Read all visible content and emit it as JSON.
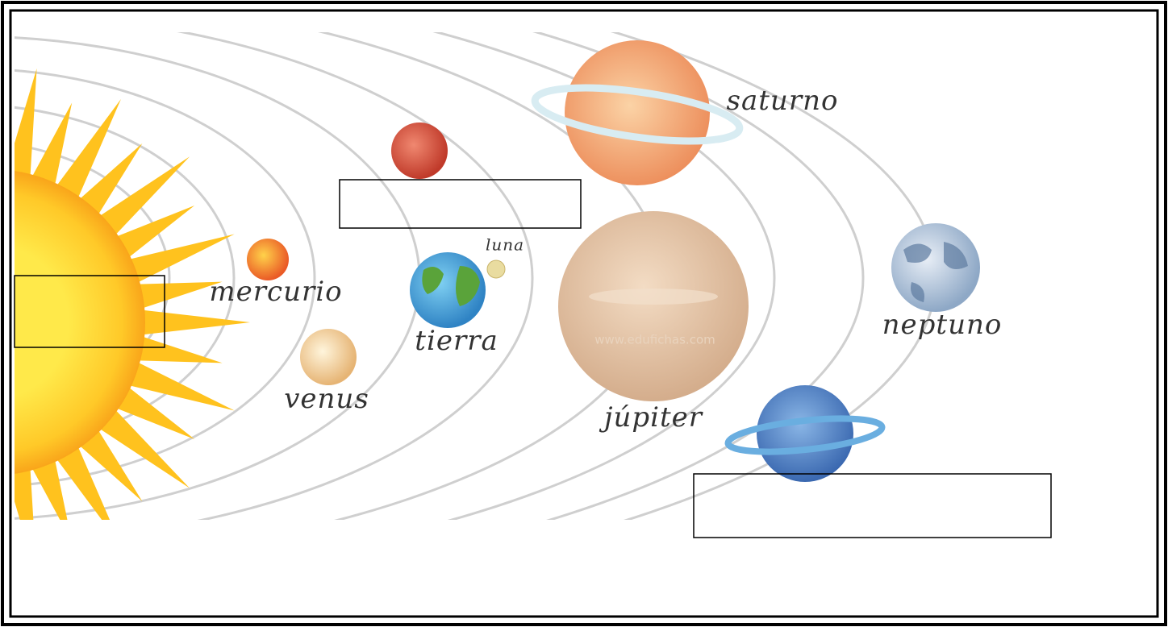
{
  "planets": [
    {
      "label": "mercurio"
    },
    {
      "label": "venus"
    },
    {
      "label": "tierra"
    },
    {
      "label": "luna"
    },
    {
      "label": "júpiter"
    },
    {
      "label": "saturno"
    },
    {
      "label": "neptuno"
    }
  ],
  "watermark": "www.edufichas.com"
}
